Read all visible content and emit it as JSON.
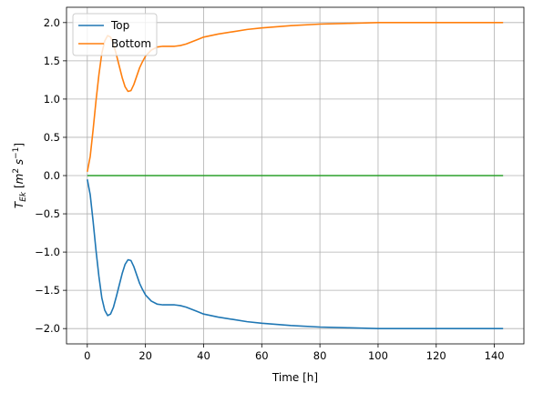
{
  "chart_data": {
    "type": "line",
    "title": "",
    "xlabel": "Time [h]",
    "ylabel": "T_Ek [m^2 s^-1]",
    "ylabel_parts": {
      "base": "T",
      "sub": "Ek",
      "open": " [",
      "m": "m",
      "sq": "2",
      "s": " s",
      "inv": "−1",
      "close": "]"
    },
    "xlim": [
      -7.15,
      150.15
    ],
    "ylim": [
      -2.2,
      2.2
    ],
    "xticks": [
      0,
      20,
      40,
      60,
      80,
      100,
      120,
      140
    ],
    "xtick_labels": [
      "0",
      "20",
      "40",
      "60",
      "80",
      "100",
      "120",
      "140"
    ],
    "yticks": [
      -2.0,
      -1.5,
      -1.0,
      -0.5,
      0.0,
      0.5,
      1.0,
      1.5,
      2.0
    ],
    "ytick_labels": [
      "−2.0",
      "−1.5",
      "−1.0",
      "−0.5",
      "0.0",
      "0.5",
      "1.0",
      "1.5",
      "2.0"
    ],
    "grid": true,
    "legend": {
      "position": "top-left",
      "entries": [
        "Top",
        "Bottom"
      ]
    },
    "series": [
      {
        "name": "Top",
        "color": "#1f77b4",
        "x": [
          0,
          1,
          2,
          3,
          4,
          5,
          6,
          7,
          8,
          9,
          10,
          11,
          12,
          13,
          14,
          15,
          16,
          17,
          18,
          19,
          20,
          22,
          24,
          26,
          28,
          30,
          32,
          34,
          36,
          38,
          40,
          45,
          50,
          55,
          60,
          70,
          80,
          90,
          100,
          110,
          120,
          130,
          140,
          143
        ],
        "y": [
          -0.05,
          -0.25,
          -0.6,
          -0.98,
          -1.32,
          -1.6,
          -1.76,
          -1.83,
          -1.81,
          -1.72,
          -1.58,
          -1.43,
          -1.28,
          -1.16,
          -1.1,
          -1.11,
          -1.19,
          -1.3,
          -1.41,
          -1.49,
          -1.56,
          -1.64,
          -1.68,
          -1.69,
          -1.69,
          -1.69,
          -1.7,
          -1.72,
          -1.75,
          -1.78,
          -1.81,
          -1.85,
          -1.88,
          -1.91,
          -1.93,
          -1.96,
          -1.98,
          -1.99,
          -2.0,
          -2.0,
          -2.0,
          -2.0,
          -2.0,
          -2.0
        ]
      },
      {
        "name": "Bottom",
        "color": "#ff7f0e",
        "x": [
          0,
          1,
          2,
          3,
          4,
          5,
          6,
          7,
          8,
          9,
          10,
          11,
          12,
          13,
          14,
          15,
          16,
          17,
          18,
          19,
          20,
          22,
          24,
          26,
          28,
          30,
          32,
          34,
          36,
          38,
          40,
          45,
          50,
          55,
          60,
          70,
          80,
          90,
          100,
          110,
          120,
          130,
          140,
          143
        ],
        "y": [
          0.05,
          0.25,
          0.6,
          0.98,
          1.32,
          1.6,
          1.76,
          1.83,
          1.81,
          1.72,
          1.58,
          1.43,
          1.28,
          1.16,
          1.1,
          1.11,
          1.19,
          1.3,
          1.41,
          1.49,
          1.56,
          1.64,
          1.68,
          1.69,
          1.69,
          1.69,
          1.7,
          1.72,
          1.75,
          1.78,
          1.81,
          1.85,
          1.88,
          1.91,
          1.93,
          1.96,
          1.98,
          1.99,
          2.0,
          2.0,
          2.0,
          2.0,
          2.0,
          2.0
        ]
      },
      {
        "color": "#2ca02c",
        "x": [
          0,
          143
        ],
        "y": [
          0,
          0
        ]
      }
    ]
  }
}
